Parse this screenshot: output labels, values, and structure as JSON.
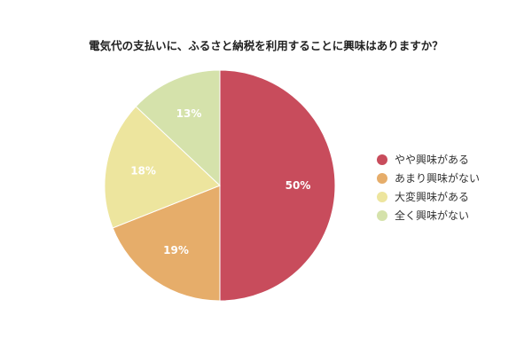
{
  "chart_data": {
    "type": "pie",
    "title": "電気代の支払いに、ふるさと納税を利用することに興味はありますか？",
    "categories": [
      "やや興味がある",
      "あまり興味がない",
      "大変興味がある",
      "全く興味がない"
    ],
    "values": [
      50,
      19,
      18,
      13
    ],
    "data_labels": [
      "50%",
      "19%",
      "18%",
      "13%"
    ],
    "colors": [
      "#c84c5c",
      "#e6ad6a",
      "#ede59e",
      "#d5e2ab"
    ],
    "legend_placement": "right"
  }
}
